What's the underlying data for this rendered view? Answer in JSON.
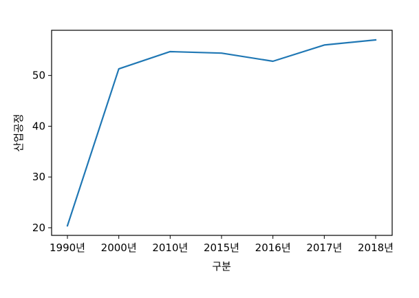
{
  "chart_data": {
    "type": "line",
    "title": "",
    "xlabel": "구분",
    "ylabel": "산업공정",
    "categories": [
      "1990년",
      "2000년",
      "2010년",
      "2015년",
      "2016년",
      "2017년",
      "2018년"
    ],
    "series": [
      {
        "values": [
          20.4,
          51.3,
          54.7,
          54.4,
          52.8,
          56.0,
          57.0
        ],
        "color": "#1f77b4"
      }
    ],
    "yticks": [
      20,
      30,
      40,
      50
    ],
    "ylim": [
      18.5,
      58.9
    ],
    "grid": false,
    "legend": "none"
  }
}
